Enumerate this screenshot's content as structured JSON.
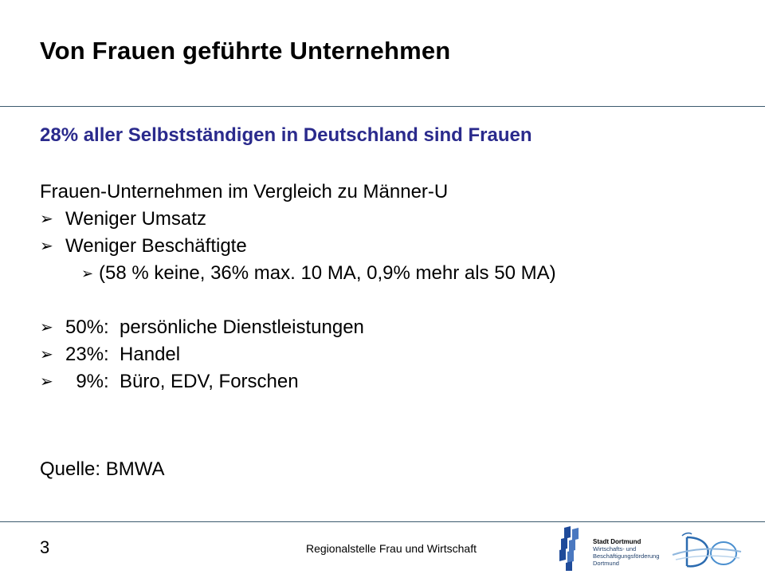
{
  "slide": {
    "title": "Von Frauen geführte Unternehmen",
    "subtitle": "28% aller Selbstständigen in Deutschland sind Frauen",
    "intro": "Frauen-Unternehmen im Vergleich zu Männer-U",
    "bullets": [
      "Weniger Umsatz",
      "Weniger Beschäftigte"
    ],
    "sub_bullet": "(58 % keine, 36% max. 10 MA, 0,9% mehr als 50 MA)",
    "stats": [
      "50%:  persönliche Dienstleistungen",
      "23%:  Handel",
      "  9%:  Büro, EDV, Forschen"
    ],
    "source": "Quelle: BMWA"
  },
  "footer": {
    "page_number": "3",
    "organization": "Regionalstelle Frau und Wirtschaft",
    "logo_title": "Stadt Dortmund",
    "logo_line1": "Wirtschafts- und",
    "logo_line2": "Beschäftigungsförderung",
    "logo_line3": "Dortmund"
  },
  "colors": {
    "subtitle": "#2a2a8c",
    "rule": "#3c5a6e",
    "logo_blue": "#1f4b9a"
  }
}
